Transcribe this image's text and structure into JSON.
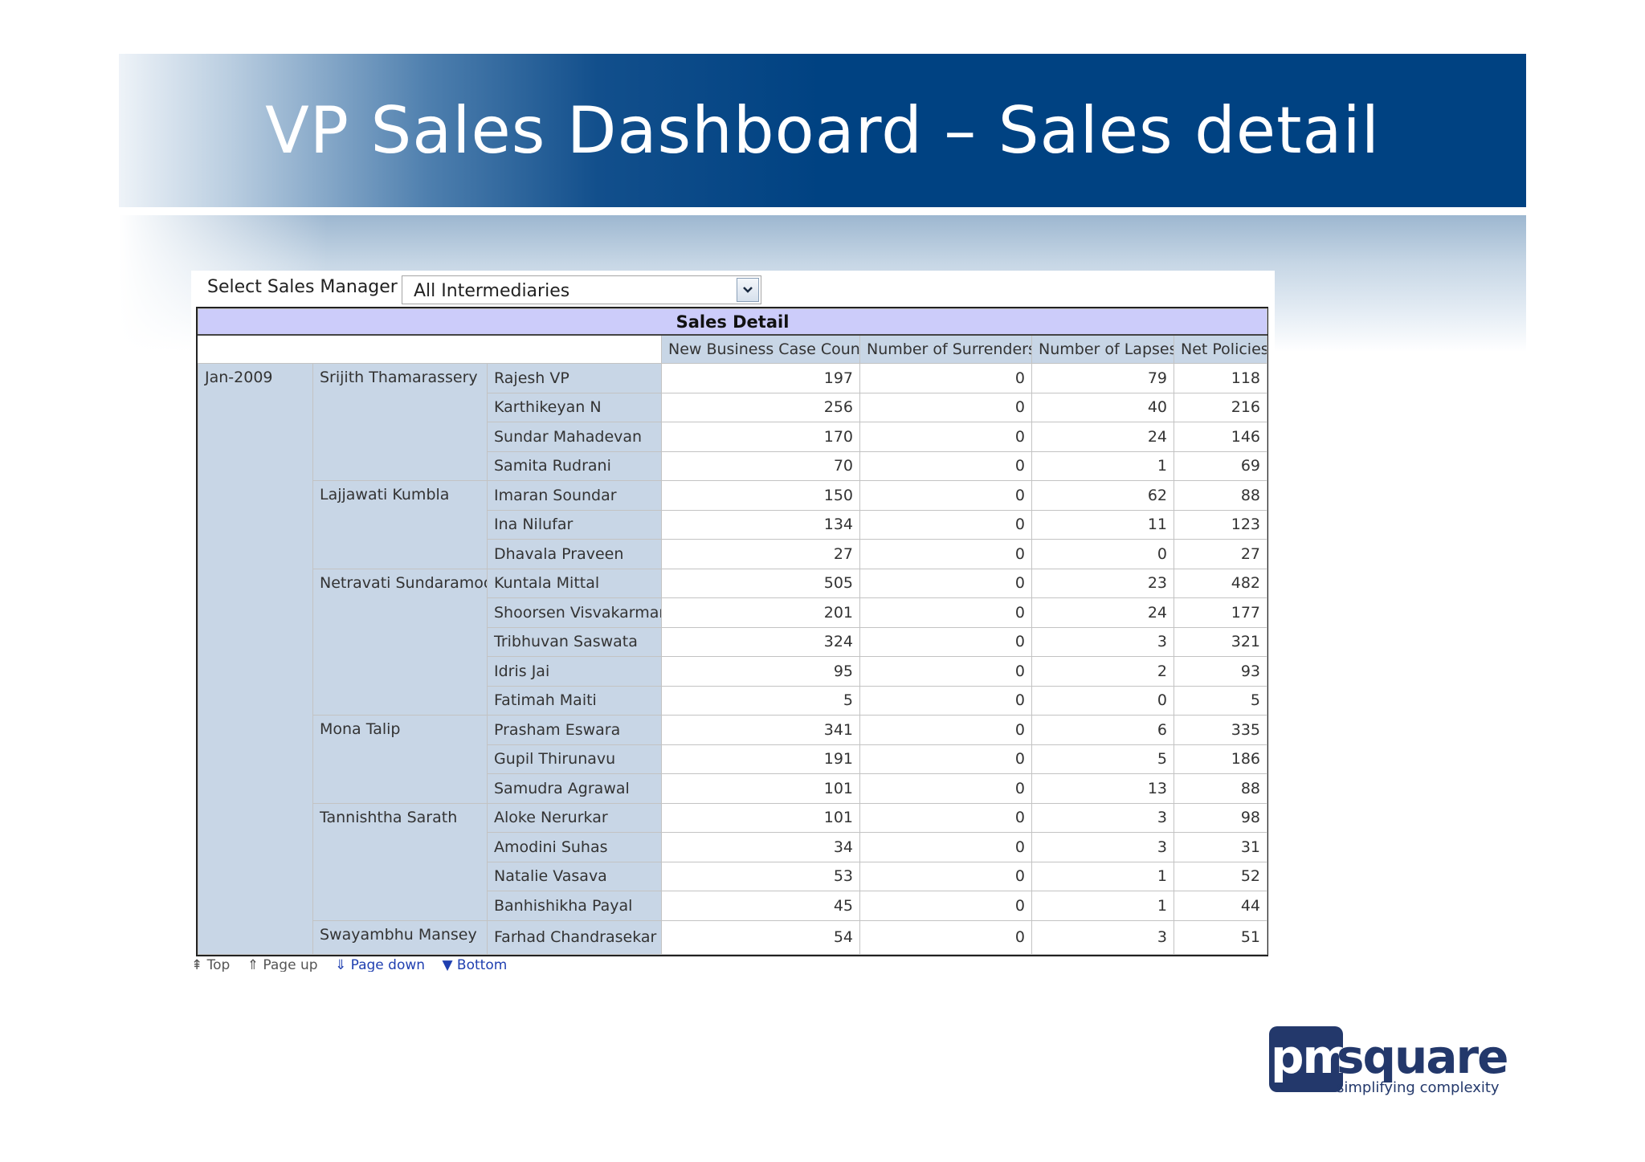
{
  "title": "VP Sales Dashboard – Sales detail",
  "selector": {
    "label": "Select Sales Manager",
    "value": "All Intermediaries"
  },
  "table": {
    "title": "Sales Detail",
    "columns": [
      "New Business Case Count",
      "Number of Surrenders",
      "Number of Lapses",
      "Net Policies"
    ],
    "period": "Jan-2009",
    "groups": [
      {
        "manager": "Srijith Thamarassery",
        "rows": [
          {
            "agent": "Rajesh VP",
            "values": [
              "197",
              "0",
              "79",
              "118"
            ]
          },
          {
            "agent": "Karthikeyan N",
            "values": [
              "256",
              "0",
              "40",
              "216"
            ]
          },
          {
            "agent": "Sundar Mahadevan",
            "values": [
              "170",
              "0",
              "24",
              "146"
            ]
          },
          {
            "agent": "Samita Rudrani",
            "values": [
              "70",
              "0",
              "1",
              "69"
            ]
          }
        ]
      },
      {
        "manager": "Lajjawati Kumbla",
        "rows": [
          {
            "agent": "Imaran Soundar",
            "values": [
              "150",
              "0",
              "62",
              "88"
            ]
          },
          {
            "agent": "Ina Nilufar",
            "values": [
              "134",
              "0",
              "11",
              "123"
            ]
          },
          {
            "agent": "Dhavala Praveen",
            "values": [
              "27",
              "0",
              "0",
              "27"
            ]
          }
        ]
      },
      {
        "manager": "Netravati Sundaramoo",
        "rows": [
          {
            "agent": "Kuntala Mittal",
            "values": [
              "505",
              "0",
              "23",
              "482"
            ]
          },
          {
            "agent": "Shoorsen Visvakarman",
            "values": [
              "201",
              "0",
              "24",
              "177"
            ]
          },
          {
            "agent": "Tribhuvan Saswata",
            "values": [
              "324",
              "0",
              "3",
              "321"
            ]
          },
          {
            "agent": "Idris Jai",
            "values": [
              "95",
              "0",
              "2",
              "93"
            ]
          },
          {
            "agent": "Fatimah Maiti",
            "values": [
              "5",
              "0",
              "0",
              "5"
            ]
          }
        ]
      },
      {
        "manager": "Mona Talip",
        "rows": [
          {
            "agent": "Prasham Eswara",
            "values": [
              "341",
              "0",
              "6",
              "335"
            ]
          },
          {
            "agent": "Gupil Thirunavu",
            "values": [
              "191",
              "0",
              "5",
              "186"
            ]
          },
          {
            "agent": "Samudra Agrawal",
            "values": [
              "101",
              "0",
              "13",
              "88"
            ]
          }
        ]
      },
      {
        "manager": "Tannishtha Sarath",
        "rows": [
          {
            "agent": "Aloke Nerurkar",
            "values": [
              "101",
              "0",
              "3",
              "98"
            ]
          },
          {
            "agent": "Amodini Suhas",
            "values": [
              "34",
              "0",
              "3",
              "31"
            ]
          },
          {
            "agent": "Natalie Vasava",
            "values": [
              "53",
              "0",
              "1",
              "52"
            ]
          },
          {
            "agent": "Banhishikha Payal",
            "values": [
              "45",
              "0",
              "1",
              "44"
            ]
          }
        ]
      },
      {
        "manager": "Swayambhu Mansey",
        "rows": [
          {
            "agent": "Farhad Chandrasekar",
            "values": [
              "54",
              "0",
              "3",
              "51"
            ]
          }
        ]
      }
    ]
  },
  "pager": {
    "top": "Top",
    "page_up": "Page up",
    "page_down": "Page down",
    "bottom": "Bottom"
  },
  "logo": {
    "brand": "pmsquare",
    "tagline": "simplifying complexity"
  },
  "colors": {
    "banner": "#004282",
    "table_title_bg": "#ccccfa",
    "header_bg": "#c8d6e6",
    "link": "#1f3fb0"
  }
}
